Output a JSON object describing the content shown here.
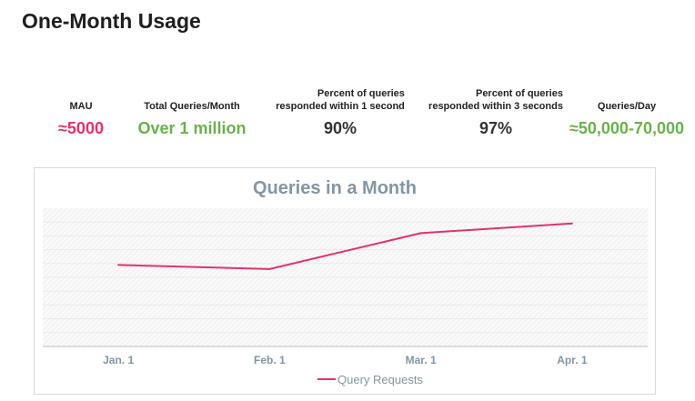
{
  "page": {
    "title": "One-Month Usage"
  },
  "stats": [
    {
      "label_lines": [
        "MAU"
      ],
      "value": "≈5000",
      "color": "#e0336b"
    },
    {
      "label_lines": [
        "Total Queries/Month"
      ],
      "value": "Over 1 million",
      "color": "#6ab04c"
    },
    {
      "label_lines": [
        "Percent of queries",
        "responded within 1 second"
      ],
      "value": "90%",
      "color": "#333333"
    },
    {
      "label_lines": [
        "Percent of queries",
        "responded within 3 seconds"
      ],
      "value": "97%",
      "color": "#333333"
    },
    {
      "label_lines": [
        "Queries/Day"
      ],
      "value": "≈50,000-70,000",
      "color": "#6ab04c"
    }
  ],
  "chart_data": {
    "type": "line",
    "title": "Queries in a Month",
    "categories": [
      "Jan. 1",
      "Feb. 1",
      "Mar. 1",
      "Apr. 1"
    ],
    "series": [
      {
        "name": "Query Requests",
        "values": [
          59,
          56,
          82,
          89
        ],
        "color": "#e0336b"
      }
    ],
    "ylim": [
      0,
      100
    ],
    "y_axis_labels_visible": false,
    "grid": true,
    "legend_position": "bottom"
  }
}
